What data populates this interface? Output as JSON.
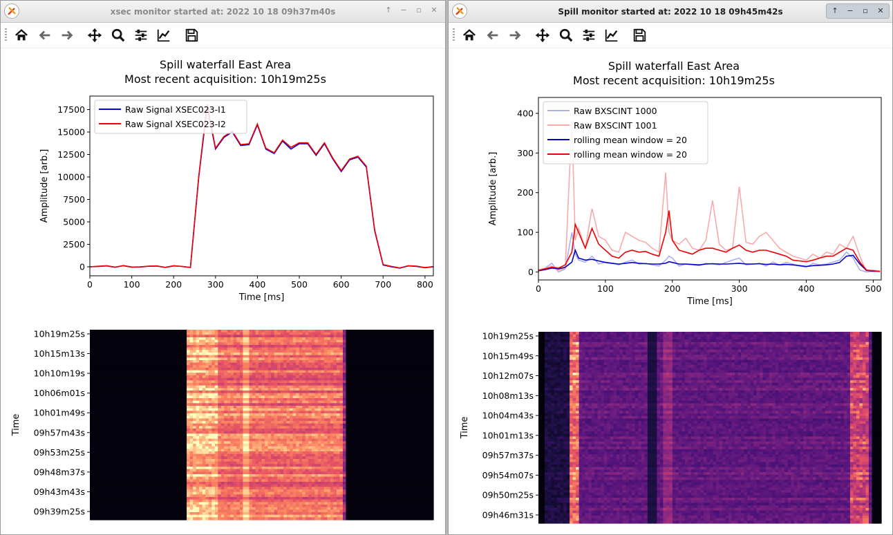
{
  "left_window": {
    "title": "xsec monitor started at: 2022 10 18 09h37m40s",
    "window_controls": [
      "↑",
      "−",
      "▫",
      "✕"
    ],
    "toolbar": [
      "home-icon",
      "back-icon",
      "forward-icon",
      "pan-icon",
      "zoom-icon",
      "configure-subplots-icon",
      "edit-axis-icon",
      "save-icon"
    ]
  },
  "right_window": {
    "title": "Spill monitor started at: 2022 10 18 09h45m42s",
    "window_controls": [
      "↑",
      "−",
      "▫",
      "✕"
    ],
    "toolbar": [
      "home-icon",
      "back-icon",
      "forward-icon",
      "pan-icon",
      "zoom-icon",
      "configure-subplots-icon",
      "edit-axis-icon",
      "save-icon"
    ]
  },
  "chart_data": [
    {
      "type": "line",
      "title": "Spill waterfall East Area",
      "subtitle": "Most recent acquisition: 10h19m25s",
      "xlabel": "Time [ms]",
      "ylabel": "Amplitude [arb.]",
      "xlim": [
        0,
        820
      ],
      "ylim": [
        -1000,
        19000
      ],
      "xticks": [
        0,
        100,
        200,
        300,
        400,
        500,
        600,
        700,
        800
      ],
      "yticks": [
        0,
        2500,
        5000,
        7500,
        10000,
        12500,
        15000,
        17500
      ],
      "legend_position": "top-left",
      "x": [
        0,
        20,
        40,
        60,
        80,
        100,
        120,
        140,
        160,
        180,
        200,
        220,
        240,
        260,
        280,
        300,
        320,
        340,
        360,
        380,
        400,
        420,
        440,
        460,
        480,
        500,
        520,
        540,
        560,
        580,
        600,
        620,
        640,
        660,
        680,
        700,
        720,
        740,
        760,
        780,
        800,
        820
      ],
      "series": [
        {
          "name": "Raw Signal XSEC023-I1",
          "color": "#0000dd",
          "values": [
            0,
            50,
            100,
            -50,
            120,
            -30,
            -20,
            60,
            80,
            -70,
            100,
            40,
            -80,
            10000,
            17800,
            13100,
            14400,
            15000,
            13500,
            13600,
            15800,
            13100,
            12600,
            14000,
            13100,
            13700,
            13700,
            12400,
            13700,
            12000,
            10600,
            11900,
            12200,
            11100,
            4000,
            200,
            0,
            -150,
            100,
            50,
            -100,
            0
          ]
        },
        {
          "name": "Raw Signal XSEC023-I2",
          "color": "#ee0000",
          "values": [
            0,
            60,
            120,
            -40,
            140,
            -20,
            -10,
            80,
            100,
            -60,
            120,
            50,
            -70,
            10100,
            18100,
            13200,
            14500,
            15100,
            13600,
            13700,
            15900,
            13200,
            12700,
            14100,
            13300,
            13800,
            13800,
            12500,
            13800,
            12100,
            10700,
            12000,
            12300,
            11200,
            4100,
            250,
            50,
            -120,
            120,
            70,
            -80,
            20
          ]
        }
      ]
    },
    {
      "type": "heatmap",
      "ylabel": "Time",
      "yticklabels": [
        "10h19m25s",
        "10h15m13s",
        "10h10m19s",
        "10h06m01s",
        "10h01m49s",
        "09h57m43s",
        "09h53m25s",
        "09h48m37s",
        "09h43m43s",
        "09h39m25s"
      ],
      "colormap": "magma",
      "signal_start_ms": 250,
      "signal_end_ms": 700
    },
    {
      "type": "line",
      "title": "Spill waterfall East Area",
      "subtitle": "Most recent acquisition: 10h19m25s",
      "xlabel": "Time [ms]",
      "ylabel": "Amplitude [arb.]",
      "xlim": [
        0,
        512
      ],
      "ylim": [
        -20,
        440
      ],
      "xticks": [
        0,
        100,
        200,
        300,
        400,
        500
      ],
      "yticks": [
        0,
        100,
        200,
        300,
        400
      ],
      "legend_position": "top-left",
      "x": [
        0,
        10,
        20,
        30,
        40,
        50,
        55,
        60,
        70,
        80,
        90,
        100,
        110,
        120,
        130,
        140,
        150,
        160,
        170,
        180,
        190,
        195,
        200,
        210,
        220,
        230,
        240,
        250,
        260,
        270,
        280,
        290,
        300,
        310,
        320,
        330,
        340,
        350,
        360,
        370,
        380,
        390,
        400,
        410,
        420,
        430,
        440,
        450,
        460,
        470,
        480,
        490,
        500,
        510
      ],
      "series": [
        {
          "name": "Raw BXSCINT 1000",
          "color": "#aab0f0",
          "values": [
            5,
            10,
            22,
            0,
            8,
            100,
            45,
            30,
            25,
            40,
            20,
            25,
            22,
            18,
            25,
            30,
            20,
            22,
            18,
            15,
            30,
            40,
            35,
            15,
            20,
            18,
            16,
            22,
            20,
            18,
            24,
            30,
            35,
            18,
            20,
            22,
            15,
            25,
            18,
            24,
            20,
            15,
            12,
            22,
            18,
            20,
            25,
            30,
            50,
            35,
            5,
            0,
            2,
            2
          ]
        },
        {
          "name": "Raw BXSCINT 1001",
          "color": "#f7aaaa",
          "values": [
            5,
            10,
            15,
            5,
            10,
            380,
            80,
            110,
            60,
            160,
            90,
            80,
            55,
            50,
            100,
            90,
            80,
            75,
            60,
            50,
            250,
            100,
            80,
            70,
            85,
            60,
            55,
            80,
            180,
            70,
            55,
            60,
            215,
            75,
            70,
            90,
            100,
            80,
            60,
            50,
            40,
            35,
            30,
            45,
            35,
            50,
            45,
            70,
            60,
            90,
            40,
            0,
            5,
            0
          ]
        },
        {
          "name": "rolling mean window = 20",
          "color": "#0000cc",
          "values": [
            3,
            6,
            10,
            8,
            12,
            25,
            55,
            35,
            30,
            32,
            28,
            24,
            22,
            20,
            22,
            24,
            22,
            21,
            20,
            20,
            22,
            26,
            24,
            20,
            20,
            19,
            18,
            20,
            21,
            20,
            20,
            21,
            22,
            20,
            20,
            21,
            19,
            20,
            18,
            19,
            18,
            16,
            14,
            16,
            17,
            18,
            20,
            24,
            40,
            42,
            20,
            4,
            2,
            2
          ]
        },
        {
          "name": "rolling mean window = 20",
          "color": "#ee0000",
          "values": [
            4,
            8,
            12,
            10,
            18,
            50,
            120,
            100,
            60,
            110,
            70,
            55,
            40,
            35,
            50,
            55,
            50,
            52,
            45,
            40,
            100,
            155,
            80,
            55,
            50,
            45,
            55,
            60,
            60,
            55,
            50,
            60,
            68,
            55,
            50,
            55,
            55,
            50,
            45,
            40,
            30,
            28,
            26,
            30,
            35,
            40,
            40,
            50,
            60,
            55,
            25,
            5,
            3,
            2
          ]
        }
      ]
    },
    {
      "type": "heatmap",
      "ylabel": "Time",
      "yticklabels": [
        "10h19m25s",
        "10h15m49s",
        "10h12m07s",
        "10h08m13s",
        "10h04m43s",
        "10h01m13s",
        "09h57m37s",
        "09h54m07s",
        "09h50m25s",
        "09h46m31s"
      ],
      "colormap": "magma"
    }
  ]
}
